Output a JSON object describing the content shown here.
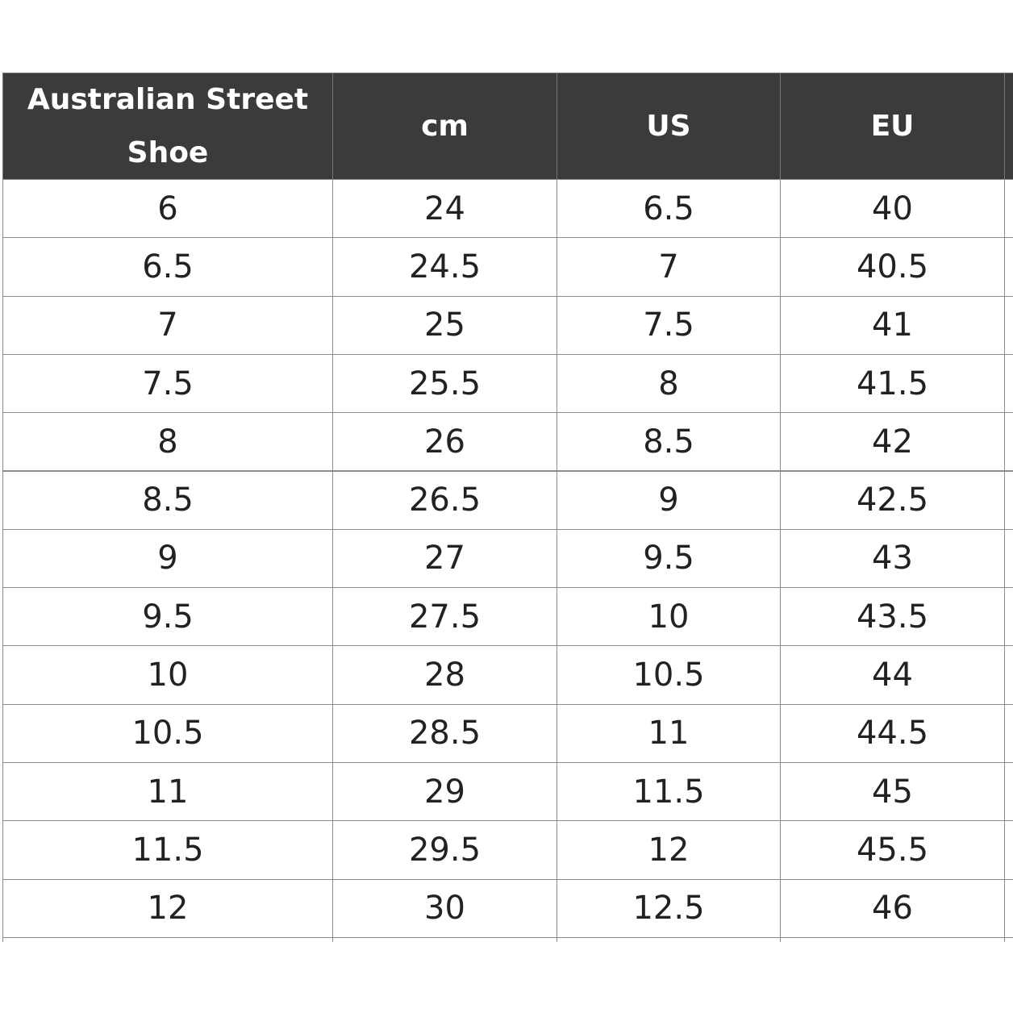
{
  "table": {
    "header": [
      "Australian Street Shoe",
      "cm",
      "US",
      "EU"
    ],
    "rows": [
      [
        "6",
        "24",
        "6.5",
        "40"
      ],
      [
        "6.5",
        "24.5",
        "7",
        "40.5"
      ],
      [
        "7",
        "25",
        "7.5",
        "41"
      ],
      [
        "7.5",
        "25.5",
        "8",
        "41.5"
      ],
      [
        "8",
        "26",
        "8.5",
        "42"
      ],
      [
        "8.5",
        "26.5",
        "9",
        "42.5"
      ],
      [
        "9",
        "27",
        "9.5",
        "43"
      ],
      [
        "9.5",
        "27.5",
        "10",
        "43.5"
      ],
      [
        "10",
        "28",
        "10.5",
        "44"
      ],
      [
        "10.5",
        "28.5",
        "11",
        "44.5"
      ],
      [
        "11",
        "29",
        "11.5",
        "45"
      ],
      [
        "11.5",
        "29.5",
        "12",
        "45.5"
      ],
      [
        "12",
        "30",
        "12.5",
        "46"
      ]
    ]
  }
}
